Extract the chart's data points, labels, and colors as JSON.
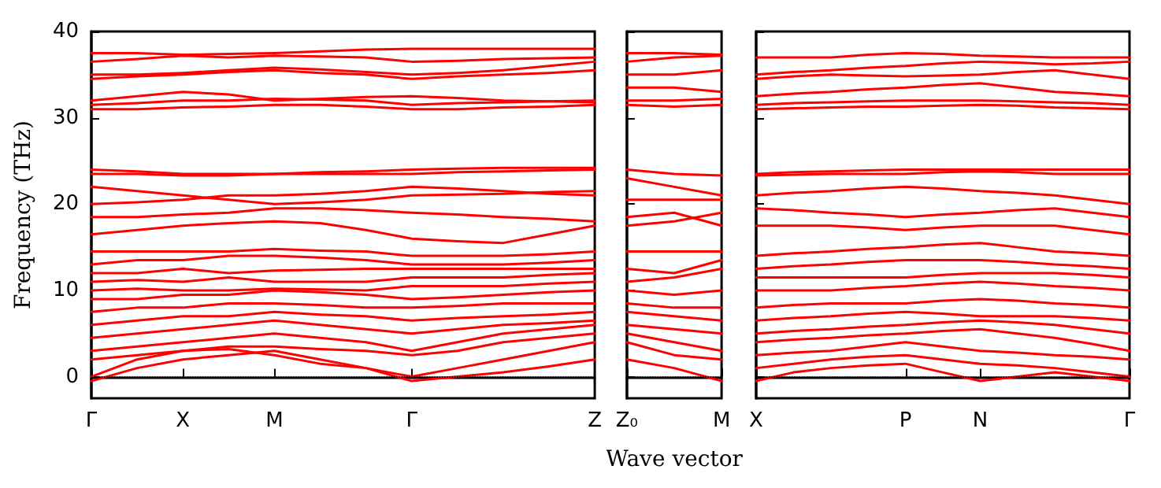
{
  "chart_data": [
    {
      "type": "line",
      "ylabel": "Frequency (THz)",
      "ylim": [
        -2.5,
        40
      ],
      "yticks": [
        0,
        10,
        20,
        30,
        40
      ],
      "categories": [
        "Γ",
        null,
        "X",
        null,
        "M",
        null,
        null,
        "Γ",
        null,
        null,
        null,
        "Z"
      ],
      "marker": "none",
      "line_style": "solid",
      "ref_lines": [
        {
          "axis": "y",
          "value": 0,
          "color": "#000000",
          "line_style": "dotted"
        }
      ],
      "series": [
        {
          "color": "#ff0000",
          "values": [
            31,
            31,
            31.2,
            31.3,
            31.5,
            31.5,
            31.3,
            31,
            31,
            31.2,
            31.3,
            31.5
          ]
        },
        {
          "color": "#ff0000",
          "values": [
            31.5,
            31.7,
            32,
            32,
            32.2,
            32.1,
            32,
            31.5,
            31.7,
            31.8,
            31.9,
            32
          ]
        },
        {
          "color": "#ff0000",
          "values": [
            32,
            32.5,
            33,
            32.7,
            32,
            32.2,
            32.4,
            32.5,
            32.3,
            32,
            31.9,
            31.8
          ]
        },
        {
          "color": "#ff0000",
          "values": [
            34.5,
            34.8,
            35,
            35.3,
            35.5,
            35.2,
            35,
            34.5,
            34.8,
            35,
            35.2,
            35.5
          ]
        },
        {
          "color": "#ff0000",
          "values": [
            35,
            35,
            35.2,
            35.5,
            35.8,
            35.6,
            35.3,
            35,
            35.2,
            35.5,
            36,
            36.5
          ]
        },
        {
          "color": "#ff0000",
          "values": [
            36.5,
            36.8,
            37.2,
            37,
            37.2,
            37.1,
            37,
            36.5,
            36.6,
            36.8,
            36.9,
            37
          ]
        },
        {
          "color": "#ff0000",
          "values": [
            37.5,
            37.5,
            37.3,
            37.4,
            37.5,
            37.7,
            37.9,
            38,
            38,
            38,
            38,
            38
          ]
        },
        {
          "color": "#ff0000",
          "values": [
            16.5,
            17,
            17.5,
            17.8,
            18,
            17.8,
            17,
            16,
            15.7,
            15.5,
            16.5,
            17.5
          ]
        },
        {
          "color": "#ff0000",
          "values": [
            18.5,
            18.5,
            18.8,
            19,
            19.5,
            19.5,
            19.3,
            19,
            18.8,
            18.5,
            18.3,
            18
          ]
        },
        {
          "color": "#ff0000",
          "values": [
            20,
            20.2,
            20.5,
            21,
            21,
            21.2,
            21.5,
            22,
            21.8,
            21.5,
            21.2,
            21
          ]
        },
        {
          "color": "#ff0000",
          "values": [
            22,
            21.5,
            21,
            20.5,
            20,
            20.2,
            20.5,
            21,
            21.1,
            21.2,
            21.4,
            21.5
          ]
        },
        {
          "color": "#ff0000",
          "values": [
            23.5,
            23.5,
            23.3,
            23.3,
            23.5,
            23.5,
            23.5,
            23.5,
            23.7,
            23.8,
            23.9,
            24
          ]
        },
        {
          "color": "#ff0000",
          "values": [
            24,
            23.8,
            23.5,
            23.5,
            23.5,
            23.7,
            23.8,
            24,
            24.1,
            24.2,
            24.2,
            24.2
          ]
        },
        {
          "color": "#ff0000",
          "values": [
            -0.5,
            1,
            2,
            2.5,
            3,
            2,
            1,
            -0.5,
            0,
            0.5,
            1.2,
            2
          ]
        },
        {
          "color": "#ff0000",
          "values": [
            0,
            2,
            3,
            3.2,
            2.5,
            1.5,
            1,
            0,
            1,
            2,
            3,
            4
          ]
        },
        {
          "color": "#ff0000",
          "values": [
            2,
            2.5,
            3,
            3.5,
            3.5,
            3.2,
            3,
            2.5,
            3,
            4,
            4.5,
            5
          ]
        },
        {
          "color": "#ff0000",
          "values": [
            3,
            3.5,
            4,
            4.5,
            5,
            4.5,
            4,
            3,
            4,
            5,
            5.5,
            6
          ]
        },
        {
          "color": "#ff0000",
          "values": [
            4.5,
            5,
            5.5,
            6,
            6.5,
            6,
            5.5,
            5,
            5.5,
            6,
            6.2,
            6.5
          ]
        },
        {
          "color": "#ff0000",
          "values": [
            6,
            6.5,
            7,
            7,
            7.5,
            7.2,
            7,
            6.5,
            6.8,
            7,
            7.2,
            7.5
          ]
        },
        {
          "color": "#ff0000",
          "values": [
            7.5,
            8,
            8,
            8.5,
            8.5,
            8.3,
            8,
            8,
            8.2,
            8.5,
            8.5,
            8.5
          ]
        },
        {
          "color": "#ff0000",
          "values": [
            9,
            9,
            9.5,
            9.5,
            10,
            9.8,
            9.5,
            9,
            9.2,
            9.5,
            9.8,
            10
          ]
        },
        {
          "color": "#ff0000",
          "values": [
            10,
            10.2,
            10,
            10,
            10.2,
            10.1,
            10,
            10.5,
            10.5,
            10.5,
            10.8,
            11
          ]
        },
        {
          "color": "#ff0000",
          "values": [
            11,
            11.2,
            11,
            11.5,
            11,
            11,
            11,
            11.5,
            11.5,
            11.5,
            11.8,
            12
          ]
        },
        {
          "color": "#ff0000",
          "values": [
            12,
            12,
            12.5,
            12,
            12.3,
            12.4,
            12.5,
            12.5,
            12.5,
            12.5,
            12.5,
            12.5
          ]
        },
        {
          "color": "#ff0000",
          "values": [
            13,
            13.5,
            13.5,
            14,
            14,
            13.8,
            13.5,
            13,
            13,
            13,
            13.2,
            13.5
          ]
        },
        {
          "color": "#ff0000",
          "values": [
            14.5,
            14.5,
            14.5,
            14.5,
            14.8,
            14.6,
            14.5,
            14,
            14,
            14,
            14.2,
            14.5
          ]
        }
      ]
    },
    {
      "type": "line",
      "xlabel": "Wave vector",
      "ylim": [
        -2.5,
        40
      ],
      "yticks": [
        0,
        10,
        20,
        30,
        40
      ],
      "categories": [
        "Z₀",
        null,
        "M"
      ],
      "tick_labels": "x",
      "marker": "none",
      "line_style": "solid",
      "ref_lines": [
        {
          "axis": "y",
          "value": 0,
          "color": "#000000",
          "line_style": "dotted"
        }
      ],
      "series": [
        {
          "color": "#ff0000",
          "values": [
            31.5,
            31.3,
            31.5
          ]
        },
        {
          "color": "#ff0000",
          "values": [
            32,
            32,
            32.2
          ]
        },
        {
          "color": "#ff0000",
          "values": [
            33.5,
            33.5,
            33
          ]
        },
        {
          "color": "#ff0000",
          "values": [
            35,
            35,
            35.5
          ]
        },
        {
          "color": "#ff0000",
          "values": [
            36.5,
            37,
            37.2
          ]
        },
        {
          "color": "#ff0000",
          "values": [
            37.5,
            37.5,
            37.3
          ]
        },
        {
          "color": "#ff0000",
          "values": [
            17.5,
            18,
            19
          ]
        },
        {
          "color": "#ff0000",
          "values": [
            18.5,
            19,
            17.5
          ]
        },
        {
          "color": "#ff0000",
          "values": [
            20.5,
            20.5,
            20.5
          ]
        },
        {
          "color": "#ff0000",
          "values": [
            23,
            22,
            21
          ]
        },
        {
          "color": "#ff0000",
          "values": [
            24,
            23.5,
            23.3
          ]
        },
        {
          "color": "#ff0000",
          "values": [
            2,
            1,
            -0.5
          ]
        },
        {
          "color": "#ff0000",
          "values": [
            4,
            2.5,
            2
          ]
        },
        {
          "color": "#ff0000",
          "values": [
            5,
            4,
            3
          ]
        },
        {
          "color": "#ff0000",
          "values": [
            6,
            5.5,
            5
          ]
        },
        {
          "color": "#ff0000",
          "values": [
            7.5,
            7,
            6.5
          ]
        },
        {
          "color": "#ff0000",
          "values": [
            8.5,
            8,
            8
          ]
        },
        {
          "color": "#ff0000",
          "values": [
            10,
            9.5,
            10
          ]
        },
        {
          "color": "#ff0000",
          "values": [
            11,
            11.5,
            12.5
          ]
        },
        {
          "color": "#ff0000",
          "values": [
            12.5,
            12,
            13.5
          ]
        },
        {
          "color": "#ff0000",
          "values": [
            14.5,
            14.5,
            14.5
          ]
        }
      ]
    },
    {
      "type": "line",
      "ylim": [
        -2.5,
        40
      ],
      "yticks": [
        0,
        10,
        20,
        30,
        40
      ],
      "categories": [
        "X",
        null,
        null,
        null,
        "P",
        null,
        "N",
        null,
        null,
        null,
        "Γ"
      ],
      "tick_labels": "x",
      "marker": "none",
      "line_style": "solid",
      "ref_lines": [
        {
          "axis": "y",
          "value": 0,
          "color": "#000000",
          "line_style": "dotted"
        }
      ],
      "series": [
        {
          "color": "#ff0000",
          "values": [
            31,
            31.1,
            31.2,
            31.3,
            31.3,
            31.4,
            31.5,
            31.4,
            31.2,
            31.1,
            31
          ]
        },
        {
          "color": "#ff0000",
          "values": [
            31.5,
            31.7,
            31.8,
            31.9,
            32,
            32,
            32,
            31.9,
            31.8,
            31.7,
            31.5
          ]
        },
        {
          "color": "#ff0000",
          "values": [
            32.5,
            32.8,
            33,
            33.3,
            33.5,
            33.8,
            34,
            33.5,
            33,
            32.8,
            32.5
          ]
        },
        {
          "color": "#ff0000",
          "values": [
            34.5,
            34.8,
            35,
            34.9,
            34.8,
            34.9,
            35,
            35.3,
            35.5,
            35,
            34.5
          ]
        },
        {
          "color": "#ff0000",
          "values": [
            35,
            35.3,
            35.5,
            35.8,
            36,
            36.3,
            36.5,
            36.4,
            36.2,
            36.3,
            36.5
          ]
        },
        {
          "color": "#ff0000",
          "values": [
            37,
            37,
            37,
            37.3,
            37.5,
            37.4,
            37.2,
            37.1,
            37,
            37,
            37
          ]
        },
        {
          "color": "#ff0000",
          "values": [
            17.5,
            17.5,
            17.5,
            17.3,
            17,
            17.3,
            17.5,
            17.5,
            17.5,
            17,
            16.5
          ]
        },
        {
          "color": "#ff0000",
          "values": [
            19.5,
            19.3,
            19,
            18.8,
            18.5,
            18.8,
            19,
            19.3,
            19.5,
            19,
            18.5
          ]
        },
        {
          "color": "#ff0000",
          "values": [
            21,
            21.3,
            21.5,
            21.8,
            22,
            21.8,
            21.5,
            21.3,
            21,
            20.5,
            20
          ]
        },
        {
          "color": "#ff0000",
          "values": [
            23.3,
            23.4,
            23.5,
            23.5,
            23.5,
            23.7,
            23.8,
            23.7,
            23.5,
            23.5,
            23.5
          ]
        },
        {
          "color": "#ff0000",
          "values": [
            23.5,
            23.7,
            23.8,
            23.9,
            24,
            24,
            24,
            24,
            24,
            24,
            24
          ]
        },
        {
          "color": "#ff0000",
          "values": [
            -0.5,
            0.5,
            1,
            1.3,
            1.5,
            0.5,
            -0.5,
            0,
            0.5,
            0,
            -0.5
          ]
        },
        {
          "color": "#ff0000",
          "values": [
            1,
            1.5,
            2,
            2.3,
            2.5,
            2,
            1.5,
            1.3,
            1,
            0.5,
            0
          ]
        },
        {
          "color": "#ff0000",
          "values": [
            2.5,
            2.8,
            3,
            3.5,
            4,
            3.5,
            3,
            2.8,
            2.5,
            2.3,
            2
          ]
        },
        {
          "color": "#ff0000",
          "values": [
            4,
            4.3,
            4.5,
            4.8,
            5,
            5.3,
            5.5,
            5,
            4.5,
            3.8,
            3
          ]
        },
        {
          "color": "#ff0000",
          "values": [
            5,
            5.3,
            5.5,
            5.8,
            6,
            6.3,
            6.5,
            6.3,
            6,
            5.5,
            5
          ]
        },
        {
          "color": "#ff0000",
          "values": [
            6.5,
            6.8,
            7,
            7.3,
            7.5,
            7.3,
            7,
            7,
            7,
            6.8,
            6.5
          ]
        },
        {
          "color": "#ff0000",
          "values": [
            8,
            8.3,
            8.5,
            8.5,
            8.5,
            8.8,
            9,
            8.8,
            8.5,
            8.3,
            8
          ]
        },
        {
          "color": "#ff0000",
          "values": [
            10,
            10,
            10,
            10.3,
            10.5,
            10.8,
            11,
            10.8,
            10.5,
            10.3,
            10
          ]
        },
        {
          "color": "#ff0000",
          "values": [
            11.5,
            11.5,
            11.5,
            11.5,
            11.5,
            11.8,
            12,
            12,
            12,
            11.8,
            11.5
          ]
        },
        {
          "color": "#ff0000",
          "values": [
            12.5,
            12.8,
            13,
            13.3,
            13.5,
            13.5,
            13.5,
            13.3,
            13,
            12.8,
            12.5
          ]
        },
        {
          "color": "#ff0000",
          "values": [
            14,
            14.3,
            14.5,
            14.8,
            15,
            15.3,
            15.5,
            15,
            14.5,
            14.3,
            14
          ]
        }
      ]
    }
  ]
}
